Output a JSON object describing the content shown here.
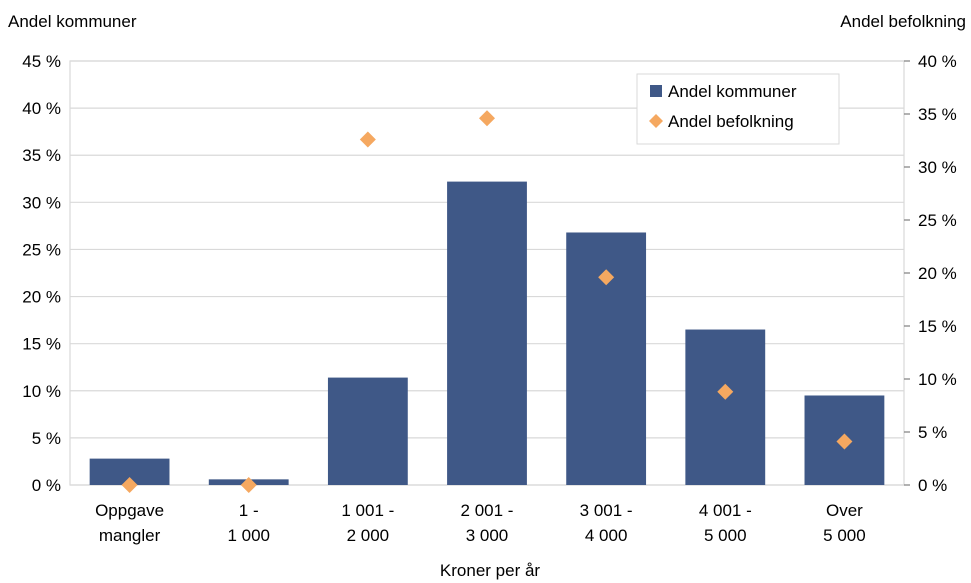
{
  "chart_data": {
    "type": "bar",
    "xlabel": "Kroner per år",
    "y_left_label": "Andel kommuner",
    "y_right_label": "Andel befolkning",
    "categories": [
      [
        "Oppgave",
        "mangler"
      ],
      [
        "1 -",
        "1 000"
      ],
      [
        "1 001 -",
        "2 000"
      ],
      [
        "2 001 -",
        "3 000"
      ],
      [
        "3 001 -",
        "4 000"
      ],
      [
        "4 001 -",
        "5 000"
      ],
      [
        "Over",
        "5 000"
      ]
    ],
    "left_axis": {
      "min": 0,
      "max": 45,
      "step": 5,
      "ticks": [
        "0 %",
        "5 %",
        "10 %",
        "15 %",
        "20 %",
        "25 %",
        "30 %",
        "35 %",
        "40 %",
        "45 %"
      ]
    },
    "right_axis": {
      "min": 0,
      "max": 40,
      "step": 5,
      "ticks": [
        "0 %",
        "5 %",
        "10 %",
        "15 %",
        "20 %",
        "25 %",
        "30 %",
        "35 %",
        "40 %"
      ]
    },
    "series": [
      {
        "name": "Andel kommuner",
        "kind": "bar",
        "axis": "left",
        "color": "#3F5887",
        "values": [
          2.8,
          0.6,
          11.4,
          32.2,
          26.8,
          16.5,
          9.5
        ]
      },
      {
        "name": "Andel befolkning",
        "kind": "diamond",
        "axis": "right",
        "color": "#F5A860",
        "values": [
          0.0,
          0.0,
          32.6,
          34.6,
          19.6,
          8.8,
          4.1
        ]
      }
    ],
    "legend": {
      "position": "top-right",
      "items": [
        "Andel kommuner",
        "Andel befolkning"
      ]
    },
    "grid": true,
    "gridColor": "#D9D9D9"
  }
}
